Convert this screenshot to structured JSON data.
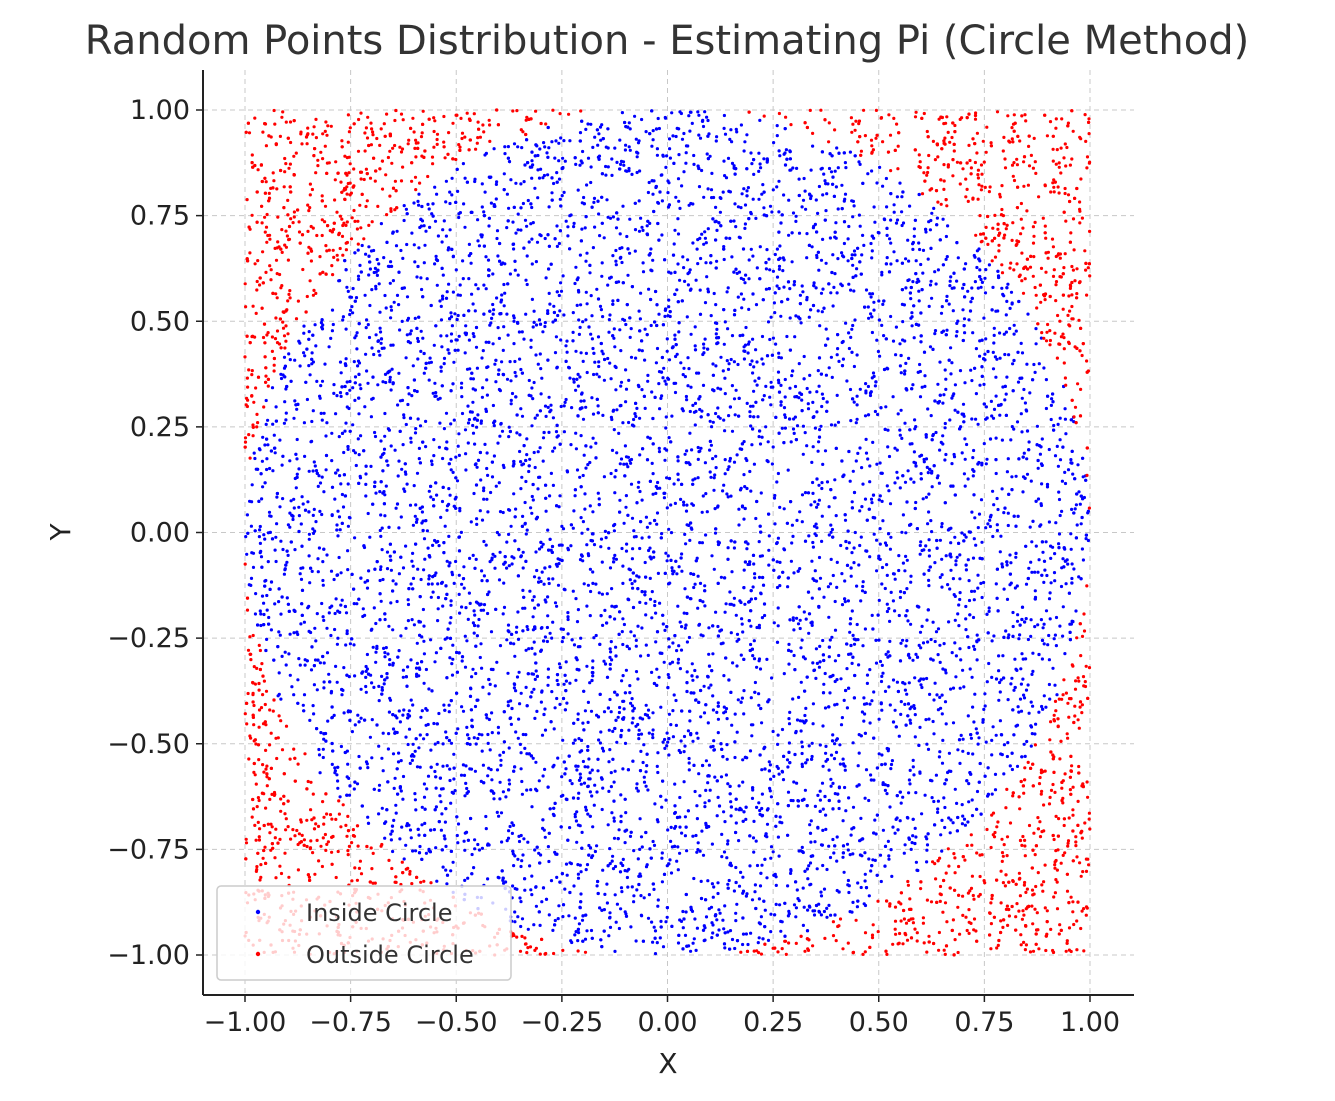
{
  "chart_data": {
    "type": "scatter",
    "title": "Random Points Distribution - Estimating Pi (Circle Method)",
    "xlabel": "X",
    "ylabel": "Y",
    "xlim": [
      -1.1,
      1.1
    ],
    "ylim": [
      -1.09,
      1.09
    ],
    "xticks": [
      -1.0,
      -0.75,
      -0.5,
      -0.25,
      0.0,
      0.25,
      0.5,
      0.75,
      1.0
    ],
    "yticks": [
      -1.0,
      -0.75,
      -0.5,
      -0.25,
      0.0,
      0.25,
      0.5,
      0.75,
      1.0
    ],
    "xtick_labels": [
      "−1.00",
      "−0.75",
      "−0.50",
      "−0.25",
      "0.00",
      "0.25",
      "0.50",
      "0.75",
      "1.00"
    ],
    "ytick_labels": [
      "−1.00",
      "−0.75",
      "−0.50",
      "−0.25",
      "0.00",
      "0.25",
      "0.50",
      "0.75",
      "1.00"
    ],
    "grid": true,
    "legend_position": "lower-left",
    "series": [
      {
        "name": "Inside Circle",
        "color": "#0000ff",
        "rule": "x^2 + y^2 <= 1"
      },
      {
        "name": "Outside Circle",
        "color": "#ff0000",
        "rule": "x^2 + y^2 > 1"
      }
    ],
    "points": {
      "count": 10000,
      "distribution": "uniform",
      "x_range": [
        -1,
        1
      ],
      "y_range": [
        -1,
        1
      ]
    }
  }
}
